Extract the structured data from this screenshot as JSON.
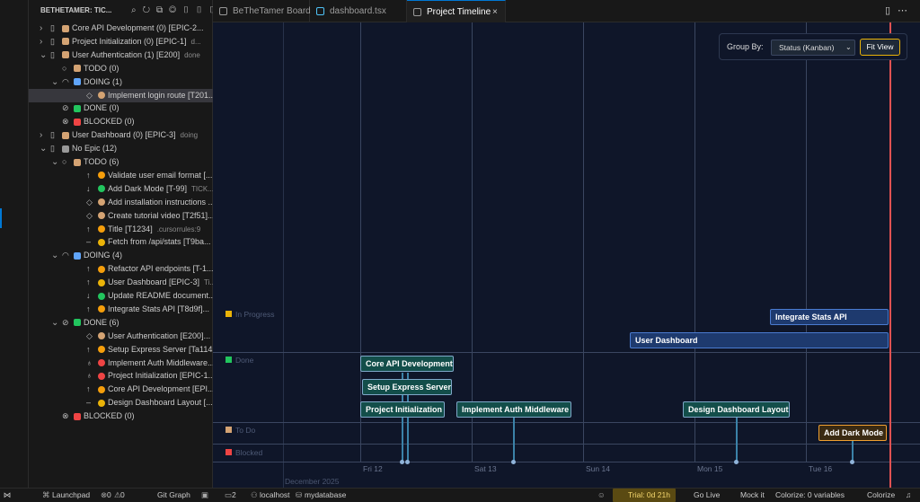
{
  "sidebar": {
    "title": "BETHETAMER: TIC...",
    "rows": [
      {
        "text": "Core API Development (0) [EPIC-2..."
      },
      {
        "text": "Project Initialization (0) [EPIC-1]",
        "meta": "d..."
      },
      {
        "text": "User Authentication (1) [E200]",
        "meta": "done"
      },
      {
        "text": "TODO (0)"
      },
      {
        "text": "DOING (1)"
      },
      {
        "text": "Implement login route [T201..."
      },
      {
        "text": "DONE (0)"
      },
      {
        "text": "BLOCKED (0)"
      },
      {
        "text": "User Dashboard (0) [EPIC-3]",
        "meta": "doing"
      },
      {
        "text": "No Epic (12)"
      },
      {
        "text": "TODO (6)"
      },
      {
        "text": "Validate user email format [..."
      },
      {
        "text": "Add Dark Mode [T-99]",
        "meta": "TICK..."
      },
      {
        "text": "Add installation instructions ..."
      },
      {
        "text": "Create tutorial video [T2f51]..."
      },
      {
        "text": "Title [T1234]",
        "meta": ".cursorrules:9"
      },
      {
        "text": "Fetch from /api/stats [T9ba..."
      },
      {
        "text": "DOING (4)"
      },
      {
        "text": "Refactor API endpoints [T-1..."
      },
      {
        "text": "User Dashboard [EPIC-3]",
        "meta": "Ti..."
      },
      {
        "text": "Update README document..."
      },
      {
        "text": "Integrate Stats API [T8d9f]..."
      },
      {
        "text": "DONE (6)"
      },
      {
        "text": "User Authentication [E200]..."
      },
      {
        "text": "Setup Express Server [Ta114..."
      },
      {
        "text": "Implement Auth Middleware..."
      },
      {
        "text": "Project Initialization [EPIC-1..."
      },
      {
        "text": "Core API Development [EPI..."
      },
      {
        "text": "Design Dashboard Layout [..."
      },
      {
        "text": "BLOCKED (0)"
      }
    ]
  },
  "tabs": [
    "BeTheTamer Board",
    "dashboard.tsx",
    "Project Timeline"
  ],
  "timeline": {
    "group_by_label": "Group By:",
    "group_by_value": "Status (Kanban)",
    "fit_view": "Fit View",
    "lanes": [
      "In Progress",
      "Done",
      "To Do",
      "Blocked"
    ],
    "bars": [
      "Integrate Stats API",
      "User Dashboard",
      "Core API Development",
      "Setup Express Server",
      "Project Initialization",
      "Implement Auth Middleware",
      "Design Dashboard Layout",
      "Add Dark Mode"
    ],
    "days": [
      "Fri 12",
      "Sat 13",
      "Sun 14",
      "Mon 15",
      "Tue 16"
    ],
    "month": "December 2025"
  },
  "status_bar": {
    "left": [
      "Launchpad",
      "0",
      "0",
      "Git Graph",
      "2",
      "localhost",
      "mydatabase"
    ],
    "right": [
      "Trial: 0d 21h",
      "Go Live",
      "Mock it",
      "Colorize: 0 variables",
      "Colorize"
    ]
  }
}
